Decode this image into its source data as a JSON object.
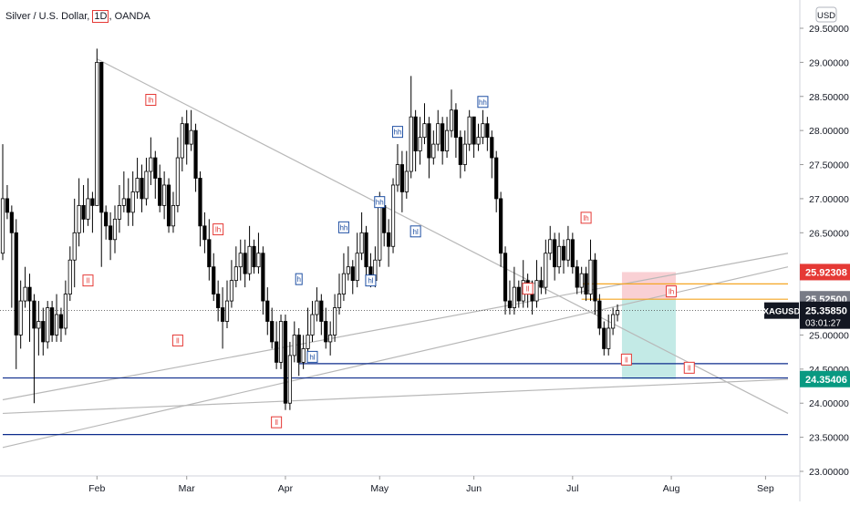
{
  "header": {
    "instrument": "Silver / U.S. Dollar",
    "timeframe": "1D",
    "exchange": "OANDA",
    "currency": "USD"
  },
  "price_tags": {
    "symbol": "XAGUSD",
    "last_price": "25.35850",
    "countdown": "03:01:27",
    "target_price": "24.35406",
    "stop_price": "25.92308",
    "entry_price": "25.52500"
  },
  "colors": {
    "up_candle": "#ffffff",
    "down_candle": "#000000",
    "stop_zone": "#f8c8cc",
    "target_zone": "#b8e6e2",
    "level_blue": "#0d2c8c",
    "level_orange": "#f5a623",
    "trendline": "#b8b8b8",
    "label_red": "#e53935",
    "label_blue": "#1e4fa3",
    "tag_red": "#e53935",
    "tag_grey": "#787b86",
    "tag_dark": "#131722",
    "tag_teal": "#089981"
  },
  "chart_data": {
    "type": "candlestick",
    "symbol": "XAGUSD",
    "y_axis": {
      "min": 23.0,
      "max": 29.6,
      "ticks": [
        "23.00000",
        "23.50000",
        "24.00000",
        "24.50000",
        "25.00000",
        "25.50000",
        "26.00000",
        "26.50000",
        "27.00000",
        "27.50000",
        "28.00000",
        "28.50000",
        "29.00000",
        "29.50000"
      ]
    },
    "x_axis": {
      "ticks": [
        {
          "label": "Feb",
          "index": 21
        },
        {
          "label": "Mar",
          "index": 41
        },
        {
          "label": "Apr",
          "index": 63
        },
        {
          "label": "May",
          "index": 84
        },
        {
          "label": "Jun",
          "index": 105
        },
        {
          "label": "Jul",
          "index": 127
        },
        {
          "label": "Aug",
          "index": 149
        },
        {
          "label": "Sep",
          "index": 170
        }
      ]
    },
    "candles": [
      [
        26.2,
        27.0,
        27.8,
        26.1
      ],
      [
        27.0,
        26.8,
        27.2,
        26.7
      ],
      [
        26.8,
        26.5,
        26.9,
        25.4
      ],
      [
        26.5,
        25.0,
        26.7,
        24.5
      ],
      [
        25.0,
        25.5,
        25.8,
        24.8
      ],
      [
        25.5,
        25.7,
        26.0,
        25.4
      ],
      [
        25.7,
        25.5,
        25.9,
        24.9
      ],
      [
        25.5,
        25.1,
        25.6,
        24.0
      ],
      [
        25.1,
        25.2,
        25.5,
        24.7
      ],
      [
        25.2,
        24.9,
        25.4,
        24.7
      ],
      [
        24.9,
        25.4,
        25.5,
        24.8
      ],
      [
        25.4,
        25.0,
        25.5,
        24.9
      ],
      [
        25.0,
        25.3,
        25.6,
        24.9
      ],
      [
        25.3,
        25.1,
        25.4,
        24.9
      ],
      [
        25.1,
        25.6,
        25.8,
        25.0
      ],
      [
        25.6,
        26.1,
        26.3,
        25.5
      ],
      [
        26.1,
        26.5,
        27.0,
        25.7
      ],
      [
        26.5,
        26.9,
        27.3,
        26.3
      ],
      [
        26.9,
        26.7,
        27.2,
        26.5
      ],
      [
        26.7,
        27.0,
        27.3,
        26.6
      ],
      [
        27.0,
        26.9,
        27.1,
        26.5
      ],
      [
        26.9,
        29.0,
        29.2,
        26.9
      ],
      [
        29.0,
        26.8,
        29.0,
        26.0
      ],
      [
        26.8,
        26.6,
        26.9,
        26.4
      ],
      [
        26.6,
        26.4,
        26.8,
        26.1
      ],
      [
        26.4,
        26.7,
        26.9,
        26.2
      ],
      [
        26.7,
        26.9,
        27.2,
        26.5
      ],
      [
        26.9,
        27.0,
        27.4,
        26.8
      ],
      [
        27.0,
        26.8,
        27.3,
        26.6
      ],
      [
        26.8,
        27.1,
        27.4,
        26.6
      ],
      [
        27.1,
        27.3,
        27.6,
        27.0
      ],
      [
        27.3,
        27.0,
        27.5,
        26.8
      ],
      [
        27.0,
        27.4,
        27.6,
        26.9
      ],
      [
        27.4,
        27.6,
        27.9,
        27.2
      ],
      [
        27.6,
        27.3,
        27.7,
        27.0
      ],
      [
        27.3,
        26.9,
        27.5,
        26.8
      ],
      [
        26.9,
        27.2,
        27.4,
        26.7
      ],
      [
        27.2,
        26.6,
        27.3,
        26.5
      ],
      [
        26.6,
        26.9,
        27.1,
        26.5
      ],
      [
        26.9,
        27.6,
        27.9,
        26.8
      ],
      [
        27.6,
        28.1,
        28.2,
        27.4
      ],
      [
        28.1,
        27.8,
        28.3,
        27.5
      ],
      [
        27.8,
        28.0,
        28.3,
        27.7
      ],
      [
        28.0,
        27.3,
        28.1,
        27.1
      ],
      [
        27.3,
        26.6,
        27.4,
        26.3
      ],
      [
        26.6,
        26.4,
        26.8,
        26.2
      ],
      [
        26.4,
        26.0,
        26.7,
        25.8
      ],
      [
        26.0,
        25.6,
        26.2,
        25.5
      ],
      [
        25.6,
        25.4,
        25.8,
        25.2
      ],
      [
        25.4,
        25.2,
        25.7,
        24.8
      ],
      [
        25.2,
        25.5,
        25.8,
        25.1
      ],
      [
        25.5,
        25.8,
        26.1,
        25.4
      ],
      [
        25.8,
        26.0,
        26.3,
        25.7
      ],
      [
        26.0,
        26.2,
        26.4,
        25.8
      ],
      [
        26.2,
        25.9,
        26.4,
        25.7
      ],
      [
        25.9,
        26.3,
        26.6,
        25.8
      ],
      [
        26.3,
        26.0,
        26.4,
        25.9
      ],
      [
        26.0,
        26.2,
        26.5,
        25.9
      ],
      [
        26.2,
        25.5,
        26.3,
        25.3
      ],
      [
        25.5,
        25.2,
        25.7,
        25.0
      ],
      [
        25.2,
        24.9,
        25.4,
        24.8
      ],
      [
        24.9,
        24.6,
        25.2,
        24.5
      ],
      [
        24.6,
        25.2,
        25.3,
        24.5
      ],
      [
        25.2,
        24.0,
        25.3,
        23.9
      ],
      [
        24.0,
        24.7,
        24.9,
        23.9
      ],
      [
        24.7,
        25.0,
        25.2,
        24.6
      ],
      [
        25.0,
        24.6,
        25.1,
        24.4
      ],
      [
        24.6,
        24.8,
        25.0,
        24.5
      ],
      [
        24.8,
        25.0,
        25.4,
        24.7
      ],
      [
        25.0,
        25.3,
        25.5,
        24.9
      ],
      [
        25.3,
        25.5,
        25.7,
        25.2
      ],
      [
        25.5,
        25.2,
        25.6,
        25.0
      ],
      [
        25.2,
        24.9,
        25.4,
        24.8
      ],
      [
        24.9,
        25.0,
        25.2,
        24.7
      ],
      [
        25.0,
        25.4,
        25.6,
        24.9
      ],
      [
        25.4,
        25.6,
        25.9,
        25.3
      ],
      [
        25.6,
        25.9,
        26.2,
        25.5
      ],
      [
        25.9,
        26.0,
        26.3,
        25.8
      ],
      [
        26.0,
        25.8,
        26.1,
        25.6
      ],
      [
        25.8,
        26.2,
        26.5,
        25.7
      ],
      [
        26.2,
        26.5,
        26.8,
        26.1
      ],
      [
        26.5,
        26.0,
        26.6,
        25.8
      ],
      [
        26.0,
        25.8,
        26.2,
        25.7
      ],
      [
        25.8,
        26.1,
        26.3,
        25.7
      ],
      [
        26.1,
        26.9,
        27.1,
        26.0
      ],
      [
        26.9,
        26.5,
        27.0,
        26.3
      ],
      [
        26.5,
        26.3,
        26.7,
        26.0
      ],
      [
        26.3,
        27.2,
        27.3,
        26.2
      ],
      [
        27.2,
        27.5,
        27.8,
        27.1
      ],
      [
        27.5,
        27.1,
        27.7,
        26.8
      ],
      [
        27.1,
        27.4,
        27.7,
        27.0
      ],
      [
        27.4,
        28.2,
        28.8,
        27.3
      ],
      [
        28.2,
        27.7,
        28.3,
        27.4
      ],
      [
        27.7,
        27.9,
        28.2,
        27.5
      ],
      [
        27.9,
        28.1,
        28.4,
        27.8
      ],
      [
        28.1,
        27.6,
        28.2,
        27.3
      ],
      [
        27.6,
        27.8,
        28.0,
        27.5
      ],
      [
        27.8,
        28.1,
        28.3,
        27.7
      ],
      [
        28.1,
        27.7,
        28.2,
        27.5
      ],
      [
        27.7,
        28.0,
        28.2,
        27.6
      ],
      [
        28.0,
        28.3,
        28.6,
        27.9
      ],
      [
        28.3,
        27.9,
        28.4,
        27.6
      ],
      [
        27.9,
        27.5,
        28.0,
        27.3
      ],
      [
        27.5,
        27.8,
        28.0,
        27.4
      ],
      [
        27.8,
        28.2,
        28.3,
        27.7
      ],
      [
        28.2,
        27.8,
        28.2,
        27.6
      ],
      [
        27.8,
        27.9,
        28.1,
        27.7
      ],
      [
        27.9,
        28.1,
        28.3,
        27.8
      ],
      [
        28.1,
        27.9,
        28.2,
        27.7
      ],
      [
        27.9,
        27.6,
        28.0,
        27.3
      ],
      [
        27.6,
        27.0,
        27.7,
        26.8
      ],
      [
        27.0,
        26.2,
        27.1,
        26.0
      ],
      [
        26.2,
        25.5,
        26.3,
        25.3
      ],
      [
        25.5,
        25.4,
        25.8,
        25.3
      ],
      [
        25.4,
        25.7,
        26.0,
        25.3
      ],
      [
        25.7,
        25.5,
        25.8,
        25.4
      ],
      [
        25.5,
        25.8,
        26.1,
        25.4
      ],
      [
        25.8,
        25.6,
        25.9,
        25.4
      ],
      [
        25.6,
        25.5,
        25.8,
        25.3
      ],
      [
        25.5,
        25.8,
        26.1,
        25.4
      ],
      [
        25.8,
        25.7,
        26.0,
        25.6
      ],
      [
        25.7,
        26.2,
        26.4,
        25.6
      ],
      [
        26.2,
        26.4,
        26.6,
        26.1
      ],
      [
        26.4,
        26.0,
        26.5,
        25.8
      ],
      [
        26.0,
        26.3,
        26.5,
        25.9
      ],
      [
        26.3,
        26.1,
        26.4,
        25.9
      ],
      [
        26.1,
        26.4,
        26.6,
        26.0
      ],
      [
        26.4,
        26.0,
        26.5,
        25.9
      ],
      [
        26.0,
        25.7,
        26.1,
        25.6
      ],
      [
        25.7,
        25.9,
        26.0,
        25.6
      ],
      [
        25.9,
        25.6,
        26.0,
        25.5
      ],
      [
        25.6,
        26.1,
        26.4,
        25.5
      ],
      [
        26.1,
        25.5,
        26.2,
        25.3
      ],
      [
        25.5,
        25.1,
        25.6,
        25.0
      ],
      [
        25.1,
        24.8,
        25.2,
        24.7
      ],
      [
        24.8,
        25.1,
        25.3,
        24.7
      ],
      [
        25.1,
        25.3,
        25.4,
        25.0
      ],
      [
        25.3,
        25.36,
        25.45,
        25.2
      ]
    ],
    "trendlines": [
      {
        "i1": 0,
        "p1": 24.05,
        "i2": 175,
        "p2": 26.2
      },
      {
        "i1": 0,
        "p1": 23.35,
        "i2": 175,
        "p2": 26.0
      },
      {
        "i1": 0,
        "p1": 23.85,
        "i2": 175,
        "p2": 24.35
      },
      {
        "i1": 21,
        "p1": 29.05,
        "i2": 175,
        "p2": 23.85
      }
    ],
    "levels": [
      {
        "price": 25.75,
        "i1": 129,
        "i2": 175,
        "color": "orange"
      },
      {
        "price": 25.525,
        "i1": 129,
        "i2": 175,
        "color": "orange"
      },
      {
        "price": 24.58,
        "i1": 66,
        "i2": 175,
        "color": "blue"
      },
      {
        "price": 24.37,
        "i1": 0,
        "i2": 175,
        "color": "blue"
      },
      {
        "price": 23.54,
        "i1": 0,
        "i2": 175,
        "color": "blue"
      }
    ],
    "last_price_line": 25.3585,
    "position": {
      "i1": 138,
      "i2": 150,
      "entry": 25.525,
      "stop": 25.92308,
      "target": 24.35406
    },
    "labels": [
      {
        "text": "lh",
        "i": 33,
        "price": 28.45,
        "color": "red"
      },
      {
        "text": "ll",
        "i": 19,
        "price": 25.8,
        "color": "red"
      },
      {
        "text": "lh",
        "i": 48,
        "price": 26.55,
        "color": "red"
      },
      {
        "text": "ll",
        "i": 39,
        "price": 24.92,
        "color": "red"
      },
      {
        "text": "ll",
        "i": 61,
        "price": 23.72,
        "color": "red"
      },
      {
        "text": "hl",
        "i": 69,
        "price": 24.68,
        "color": "blue"
      },
      {
        "text": "h",
        "i": 66,
        "price": 25.82,
        "color": "blue"
      },
      {
        "text": "hh",
        "i": 76,
        "price": 26.58,
        "color": "blue"
      },
      {
        "text": "hl",
        "i": 82,
        "price": 25.8,
        "color": "blue"
      },
      {
        "text": "hh",
        "i": 84,
        "price": 26.95,
        "color": "blue"
      },
      {
        "text": "hh",
        "i": 88,
        "price": 27.98,
        "color": "blue"
      },
      {
        "text": "hl",
        "i": 92,
        "price": 26.52,
        "color": "blue"
      },
      {
        "text": "hh",
        "i": 107,
        "price": 28.42,
        "color": "blue"
      },
      {
        "text": "ll",
        "i": 117,
        "price": 25.68,
        "color": "red"
      },
      {
        "text": "lh",
        "i": 130,
        "price": 26.72,
        "color": "red"
      },
      {
        "text": "lh",
        "i": 149,
        "price": 25.64,
        "color": "red"
      },
      {
        "text": "ll",
        "i": 139,
        "price": 24.64,
        "color": "red"
      },
      {
        "text": "ll",
        "i": 153,
        "price": 24.52,
        "color": "red"
      }
    ]
  }
}
